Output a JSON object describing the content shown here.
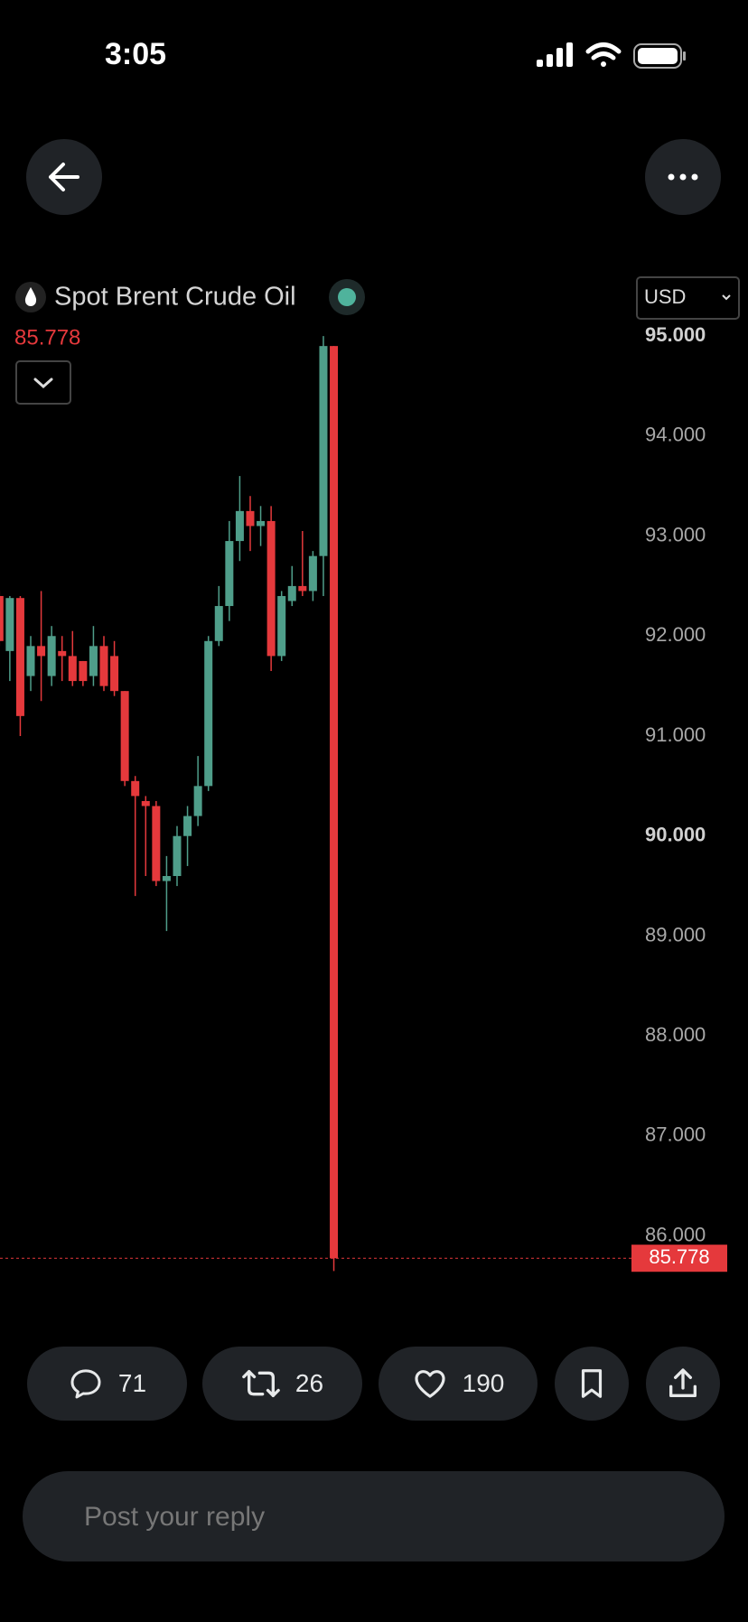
{
  "status_bar": {
    "time": "3:05"
  },
  "chart_data": {
    "type": "candlestick",
    "title": "Spot Brent Crude Oil",
    "currency": "USD",
    "up_color": "#4f9e8a",
    "down_color": "#e5393c",
    "open": [
      92.4,
      91.85,
      92.38,
      91.6,
      91.9,
      91.6,
      91.85,
      91.8,
      91.75,
      91.6,
      91.9,
      91.8,
      91.45,
      90.55,
      90.35,
      90.3,
      89.55,
      89.6,
      90.0,
      90.2,
      90.5,
      91.95,
      92.3,
      92.95,
      93.25,
      93.1,
      93.15,
      91.8,
      92.35,
      92.5,
      92.45,
      92.8,
      94.9
    ],
    "high": [
      92.45,
      92.4,
      92.4,
      92.0,
      92.45,
      92.1,
      92.0,
      92.05,
      91.75,
      92.1,
      92.0,
      91.95,
      91.45,
      90.6,
      90.4,
      90.35,
      89.8,
      90.1,
      90.3,
      90.8,
      92.0,
      92.5,
      93.15,
      93.6,
      93.4,
      93.3,
      93.3,
      92.45,
      92.7,
      93.05,
      92.85,
      95.0,
      94.9
    ],
    "low": [
      91.9,
      91.55,
      91.0,
      91.45,
      91.35,
      91.5,
      91.55,
      91.5,
      91.5,
      91.5,
      91.45,
      91.4,
      90.5,
      89.4,
      89.6,
      89.5,
      89.05,
      89.5,
      89.7,
      90.1,
      90.45,
      91.9,
      92.15,
      92.75,
      92.85,
      92.9,
      91.65,
      91.75,
      92.3,
      92.4,
      92.35,
      92.4,
      85.65
    ],
    "close": [
      91.95,
      92.38,
      91.2,
      91.9,
      91.8,
      92.0,
      91.8,
      91.55,
      91.55,
      91.9,
      91.5,
      91.45,
      90.55,
      90.4,
      90.3,
      89.55,
      89.6,
      90.0,
      90.2,
      90.5,
      91.95,
      92.3,
      92.95,
      93.25,
      93.1,
      93.15,
      91.8,
      92.4,
      92.5,
      92.45,
      92.8,
      94.9,
      85.778
    ],
    "ylim": [
      85.5,
      95.1
    ],
    "yticks": [
      {
        "value": 86,
        "label": "86.000"
      },
      {
        "value": 87,
        "label": "87.000"
      },
      {
        "value": 88,
        "label": "88.000"
      },
      {
        "value": 89,
        "label": "89.000"
      },
      {
        "value": 90,
        "label": "90.000"
      },
      {
        "value": 91,
        "label": "91.000"
      },
      {
        "value": 92,
        "label": "92.000"
      },
      {
        "value": 93,
        "label": "93.000"
      },
      {
        "value": 94,
        "label": "94.000"
      },
      {
        "value": 95,
        "label": "95.000"
      }
    ]
  },
  "actions": {
    "replies": 71,
    "reposts": 26,
    "likes": 190
  },
  "reply_placeholder": "Post your reply"
}
